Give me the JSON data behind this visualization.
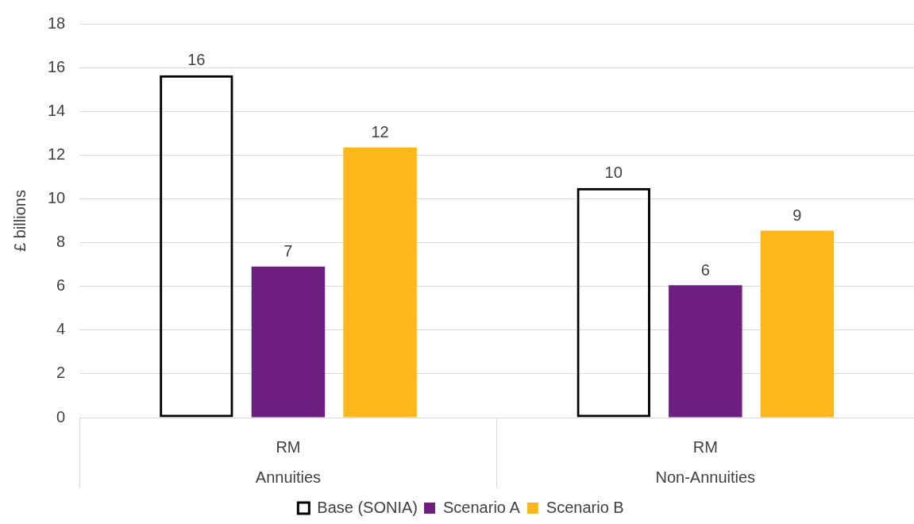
{
  "chart_data": {
    "type": "bar",
    "ylabel": "£ billions",
    "categories": [
      "RM",
      "RM"
    ],
    "annotations": [
      "Annuities",
      "Non-Annuities"
    ],
    "series": [
      {
        "name": "Base (SONIA)",
        "color": "#000000",
        "values": [
          15.65,
          10.5
        ],
        "value_labels": [
          "16",
          "10"
        ]
      },
      {
        "name": "Scenario A",
        "color": "#6f1f80",
        "values": [
          6.9,
          6.05
        ],
        "value_labels": [
          "7",
          "6"
        ]
      },
      {
        "name": "Scenario B",
        "color": "#fdb71a",
        "values": [
          12.35,
          8.55
        ],
        "value_labels": [
          "12",
          "9"
        ]
      }
    ],
    "ylim": [
      0,
      18
    ],
    "yticks": [
      0,
      2,
      4,
      6,
      8,
      10,
      12,
      14,
      16,
      18
    ],
    "grid": "y",
    "legend": "bottom"
  }
}
